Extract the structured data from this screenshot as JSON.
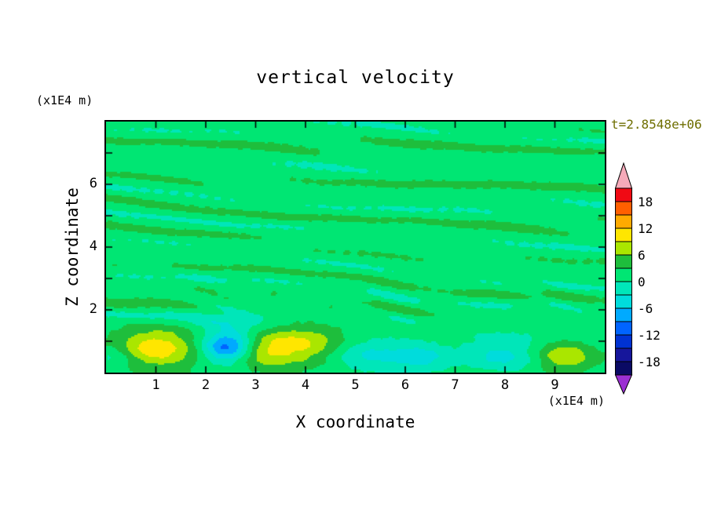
{
  "colors": {
    "page_background": "#FFFFFF",
    "plot_frame": "#000000",
    "text": "#000000",
    "timestamp_text": "#6E6E00"
  },
  "chart_data": {
    "type": "heatmap",
    "variant": "filled-contour",
    "title": "vertical velocity",
    "time_label": "t=2.8548e+06",
    "xlabel": "X coordinate",
    "ylabel": "Z coordinate",
    "x_unit_label": "(x1E4 m)",
    "y_unit_label": "(x1E4 m)",
    "xlim": [
      0,
      10
    ],
    "ylim": [
      0,
      8
    ],
    "x_ticks": [
      1,
      2,
      3,
      4,
      5,
      6,
      7,
      8,
      9
    ],
    "y_ticks": [
      2,
      4,
      6
    ],
    "x_ticks_all": [
      1,
      2,
      3,
      4,
      5,
      6,
      7,
      8,
      9
    ],
    "y_ticks_all": [
      1,
      2,
      3,
      4,
      5,
      6,
      7
    ],
    "contour_interval": 3,
    "levels": [
      -21,
      -18,
      -15,
      -12,
      -9,
      -6,
      -3,
      0,
      3,
      6,
      9,
      12,
      15,
      18,
      21
    ],
    "colorbar_tick_labels": [
      "18",
      "12",
      "6",
      "0",
      "-6",
      "-12",
      "-18"
    ],
    "palette_desc": [
      "#F00A14",
      "#FF5F00",
      "#FFAA00",
      "#FFE600",
      "#AAE600",
      "#1EBE3C",
      "#00E673",
      "#00E6B9",
      "#00DCDC",
      "#00AAFF",
      "#0064FF",
      "#0032D2",
      "#16169B",
      "#0A0A64"
    ],
    "over_color": "#F5AAB9",
    "under_color": "#9B30D2",
    "background_band": [
      0,
      3
    ],
    "features": [
      {
        "x": 1.0,
        "z": 0.75,
        "rx": 0.85,
        "rz": 0.6,
        "value": 9.5
      },
      {
        "x": 2.45,
        "z": 0.8,
        "rx": 0.5,
        "rz": 0.48,
        "value": -13.0
      },
      {
        "x": 2.5,
        "z": 1.45,
        "rx": 0.85,
        "rz": 0.65,
        "value": -3.2
      },
      {
        "x": 3.75,
        "z": 0.85,
        "rx": 1.05,
        "rz": 0.62,
        "value": 8.5
      },
      {
        "x": 3.0,
        "z": 0.55,
        "rx": 0.6,
        "rz": 0.45,
        "value": 3.5
      },
      {
        "x": 5.2,
        "z": 0.6,
        "rx": 0.8,
        "rz": 0.55,
        "value": -5.5
      },
      {
        "x": 6.3,
        "z": 0.5,
        "rx": 0.6,
        "rz": 0.5,
        "value": -5.0
      },
      {
        "x": 8.0,
        "z": 0.6,
        "rx": 0.9,
        "rz": 0.55,
        "value": -5.5
      },
      {
        "x": 9.15,
        "z": 0.5,
        "rx": 0.6,
        "rz": 0.5,
        "value": 7.5
      },
      {
        "x": 0.15,
        "z": 0.5,
        "rx": 0.5,
        "rz": 0.5,
        "value": -3.5
      }
    ],
    "field_model": {
      "base": 1.7,
      "streak_scale": 2.1,
      "streak_floor": 0.3,
      "streak_fade": [
        0.9,
        2.1
      ],
      "streaks": [
        {
          "amp": 0.6,
          "fx": 0.52,
          "fz": 6.0,
          "warp": 1.5,
          "wx": 0.43,
          "wz": 0.9,
          "ph": 1.1
        },
        {
          "amp": 0.4,
          "fx": 1.05,
          "fz": 9.5,
          "warp": 1.3,
          "wx": 0.66,
          "wz": -1.35,
          "ph": 0.4
        }
      ],
      "mottle": {
        "amp": 1.25,
        "z": 2.2,
        "sigma": 0.8,
        "fx": 2.6,
        "fz": 8.5,
        "warp": 1.7,
        "wx": 1.9,
        "wz": 0.8
      },
      "ripple": {
        "amp": 0.35,
        "a": 12.7,
        "b": 5.3,
        "c": 7.9,
        "d": 9.1
      }
    }
  }
}
